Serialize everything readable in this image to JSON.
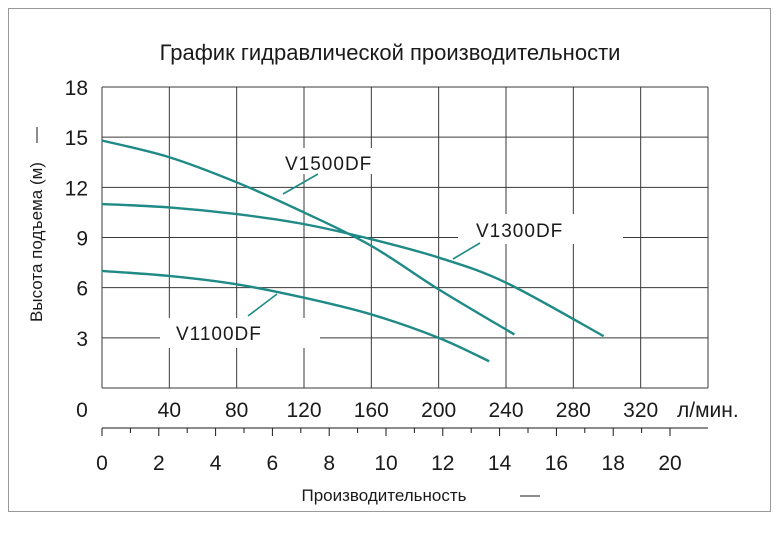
{
  "chart_data": {
    "type": "line",
    "title": "График гидравлической производительности",
    "ylabel": "Высота подъема (м)",
    "xlabel": "Производительность",
    "x_unit": "л/мин.",
    "ylim": [
      0,
      18
    ],
    "yticks": [
      "3",
      "6",
      "9",
      "12",
      "15",
      "18"
    ],
    "xlim_lpm": [
      0,
      320
    ],
    "xticks_lpm": [
      "0",
      "40",
      "80",
      "120",
      "160",
      "200",
      "240",
      "280",
      "320"
    ],
    "xticks_m3h": [
      "0",
      "2",
      "4",
      "6",
      "8",
      "10",
      "12",
      "14",
      "16",
      "18",
      "20"
    ],
    "grid": true,
    "colors": {
      "series": "#1f8a86",
      "grid": "#3a3a3a",
      "text": "#1a1a1a"
    },
    "series": [
      {
        "name": "V1500DF",
        "x": [
          0,
          40,
          80,
          120,
          160,
          200,
          245
        ],
        "y": [
          14.8,
          13.8,
          12.3,
          10.5,
          8.5,
          5.9,
          3.2
        ]
      },
      {
        "name": "V1300DF",
        "x": [
          0,
          40,
          80,
          120,
          160,
          200,
          240,
          298
        ],
        "y": [
          11,
          10.8,
          10.4,
          9.8,
          8.9,
          7.8,
          6.3,
          3.1
        ]
      },
      {
        "name": "V1100DF",
        "x": [
          0,
          40,
          80,
          120,
          160,
          200,
          230
        ],
        "y": [
          7,
          6.7,
          6.2,
          5.4,
          4.4,
          3.0,
          1.6
        ]
      }
    ]
  }
}
